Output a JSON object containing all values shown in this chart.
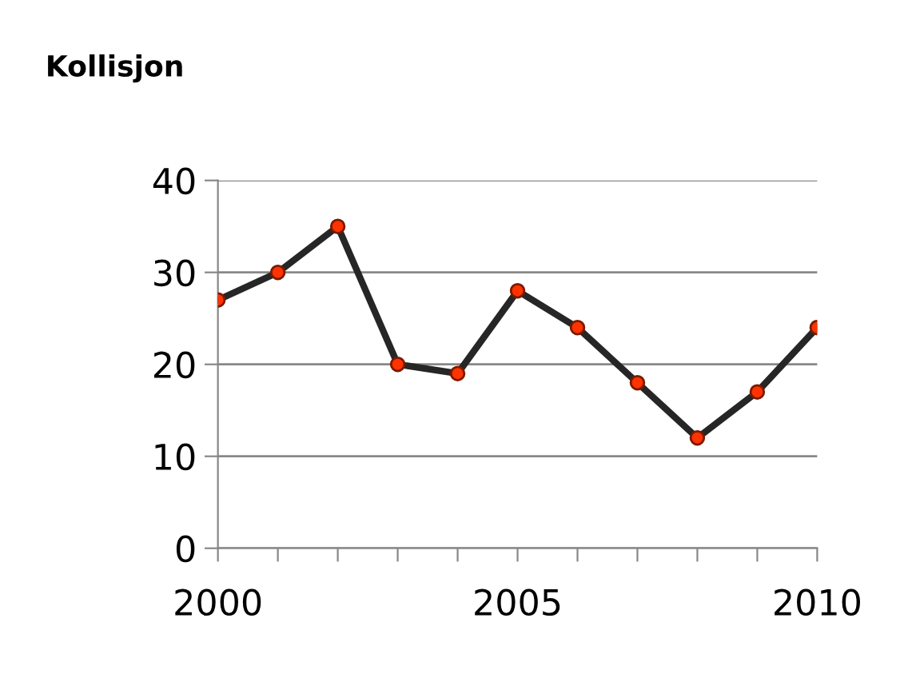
{
  "chart_data": {
    "type": "line",
    "title": "Kollisjon",
    "x": [
      2000,
      2001,
      2002,
      2003,
      2004,
      2005,
      2006,
      2007,
      2008,
      2009,
      2010
    ],
    "series": [
      {
        "color": "#262626",
        "values": [
          27,
          30,
          35,
          20,
          19,
          28,
          24,
          18,
          12,
          17,
          24
        ]
      }
    ],
    "marker": "circle",
    "line_style": "solid",
    "xlim": [
      2000,
      2010
    ],
    "xticks": [
      2000,
      {
        "value": 2001,
        "label": null
      },
      {
        "value": 2002,
        "label": null
      },
      {
        "value": 2003,
        "label": null
      },
      {
        "value": 2004,
        "label": null
      },
      2005,
      {
        "value": 2006,
        "label": null
      },
      {
        "value": 2007,
        "label": null
      },
      {
        "value": 2008,
        "label": null
      },
      {
        "value": 2009,
        "label": null
      },
      2010
    ],
    "ylim": [
      0,
      40
    ],
    "yticks": [
      0,
      10,
      20,
      30,
      40
    ],
    "grid": "y",
    "legend": false
  }
}
